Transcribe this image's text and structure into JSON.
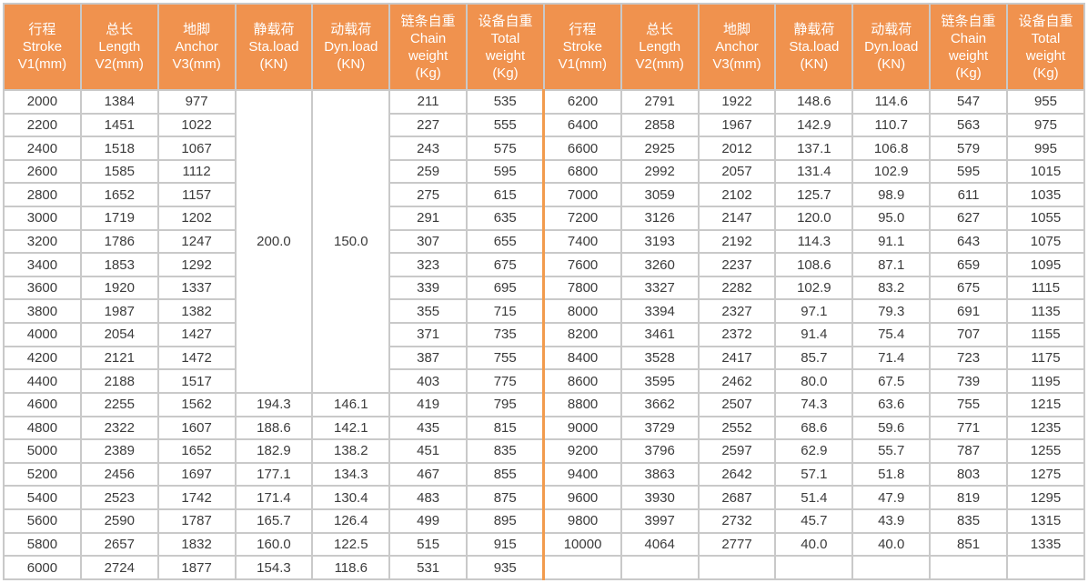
{
  "table": {
    "header_bg": "#F0924E",
    "header_text_color": "#FFFFFF",
    "grid_color": "#C9C9C9",
    "divider_color": "#F29B4D",
    "body_text_color": "#3B3B3B",
    "columns": [
      {
        "key": "stroke",
        "lines": [
          "行程",
          "Stroke",
          "V1(mm)"
        ]
      },
      {
        "key": "length",
        "lines": [
          "总长",
          "Length",
          "V2(mm)"
        ]
      },
      {
        "key": "anchor",
        "lines": [
          "地脚",
          "Anchor",
          "V3(mm)"
        ]
      },
      {
        "key": "sta-load",
        "lines": [
          "静载荷",
          "Sta.load",
          "(KN)"
        ]
      },
      {
        "key": "dyn-load",
        "lines": [
          "动载荷",
          "Dyn.load",
          "(KN)"
        ]
      },
      {
        "key": "chain-weight",
        "lines": [
          "链条自重",
          "Chain",
          "weight",
          "(Kg)"
        ]
      },
      {
        "key": "total-weight",
        "lines": [
          "设备自重",
          "Total",
          "weight",
          "(Kg)"
        ]
      }
    ],
    "left": {
      "merged": {
        "sta_load": "200.0",
        "dyn_load": "150.0",
        "rows": 13
      },
      "rows": [
        [
          "2000",
          "1384",
          "977",
          "",
          "",
          "211",
          "535"
        ],
        [
          "2200",
          "1451",
          "1022",
          "",
          "",
          "227",
          "555"
        ],
        [
          "2400",
          "1518",
          "1067",
          "",
          "",
          "243",
          "575"
        ],
        [
          "2600",
          "1585",
          "1112",
          "",
          "",
          "259",
          "595"
        ],
        [
          "2800",
          "1652",
          "1157",
          "",
          "",
          "275",
          "615"
        ],
        [
          "3000",
          "1719",
          "1202",
          "",
          "",
          "291",
          "635"
        ],
        [
          "3200",
          "1786",
          "1247",
          "",
          "",
          "307",
          "655"
        ],
        [
          "3400",
          "1853",
          "1292",
          "",
          "",
          "323",
          "675"
        ],
        [
          "3600",
          "1920",
          "1337",
          "",
          "",
          "339",
          "695"
        ],
        [
          "3800",
          "1987",
          "1382",
          "",
          "",
          "355",
          "715"
        ],
        [
          "4000",
          "2054",
          "1427",
          "",
          "",
          "371",
          "735"
        ],
        [
          "4200",
          "2121",
          "1472",
          "",
          "",
          "387",
          "755"
        ],
        [
          "4400",
          "2188",
          "1517",
          "",
          "",
          "403",
          "775"
        ],
        [
          "4600",
          "2255",
          "1562",
          "194.3",
          "146.1",
          "419",
          "795"
        ],
        [
          "4800",
          "2322",
          "1607",
          "188.6",
          "142.1",
          "435",
          "815"
        ],
        [
          "5000",
          "2389",
          "1652",
          "182.9",
          "138.2",
          "451",
          "835"
        ],
        [
          "5200",
          "2456",
          "1697",
          "177.1",
          "134.3",
          "467",
          "855"
        ],
        [
          "5400",
          "2523",
          "1742",
          "171.4",
          "130.4",
          "483",
          "875"
        ],
        [
          "5600",
          "2590",
          "1787",
          "165.7",
          "126.4",
          "499",
          "895"
        ],
        [
          "5800",
          "2657",
          "1832",
          "160.0",
          "122.5",
          "515",
          "915"
        ],
        [
          "6000",
          "2724",
          "1877",
          "154.3",
          "118.6",
          "531",
          "935"
        ]
      ]
    },
    "right": {
      "rows": [
        [
          "6200",
          "2791",
          "1922",
          "148.6",
          "114.6",
          "547",
          "955"
        ],
        [
          "6400",
          "2858",
          "1967",
          "142.9",
          "110.7",
          "563",
          "975"
        ],
        [
          "6600",
          "2925",
          "2012",
          "137.1",
          "106.8",
          "579",
          "995"
        ],
        [
          "6800",
          "2992",
          "2057",
          "131.4",
          "102.9",
          "595",
          "1015"
        ],
        [
          "7000",
          "3059",
          "2102",
          "125.7",
          "98.9",
          "611",
          "1035"
        ],
        [
          "7200",
          "3126",
          "2147",
          "120.0",
          "95.0",
          "627",
          "1055"
        ],
        [
          "7400",
          "3193",
          "2192",
          "114.3",
          "91.1",
          "643",
          "1075"
        ],
        [
          "7600",
          "3260",
          "2237",
          "108.6",
          "87.1",
          "659",
          "1095"
        ],
        [
          "7800",
          "3327",
          "2282",
          "102.9",
          "83.2",
          "675",
          "1115"
        ],
        [
          "8000",
          "3394",
          "2327",
          "97.1",
          "79.3",
          "691",
          "1135"
        ],
        [
          "8200",
          "3461",
          "2372",
          "91.4",
          "75.4",
          "707",
          "1155"
        ],
        [
          "8400",
          "3528",
          "2417",
          "85.7",
          "71.4",
          "723",
          "1175"
        ],
        [
          "8600",
          "3595",
          "2462",
          "80.0",
          "67.5",
          "739",
          "1195"
        ],
        [
          "8800",
          "3662",
          "2507",
          "74.3",
          "63.6",
          "755",
          "1215"
        ],
        [
          "9000",
          "3729",
          "2552",
          "68.6",
          "59.6",
          "771",
          "1235"
        ],
        [
          "9200",
          "3796",
          "2597",
          "62.9",
          "55.7",
          "787",
          "1255"
        ],
        [
          "9400",
          "3863",
          "2642",
          "57.1",
          "51.8",
          "803",
          "1275"
        ],
        [
          "9600",
          "3930",
          "2687",
          "51.4",
          "47.9",
          "819",
          "1295"
        ],
        [
          "9800",
          "3997",
          "2732",
          "45.7",
          "43.9",
          "835",
          "1315"
        ],
        [
          "10000",
          "4064",
          "2777",
          "40.0",
          "40.0",
          "851",
          "1335"
        ],
        [
          "",
          "",
          "",
          "",
          "",
          "",
          ""
        ]
      ]
    }
  }
}
